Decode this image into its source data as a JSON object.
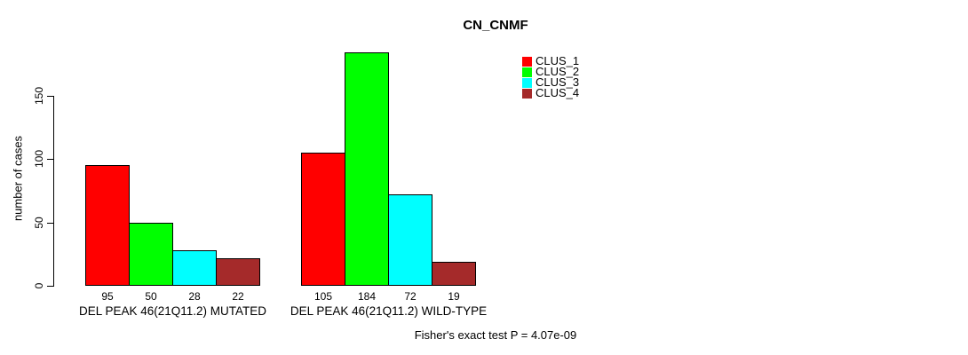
{
  "title": "CN_CNMF",
  "ylabel": "number of cases",
  "annotation": "Fisher's exact test P = 4.07e-09",
  "chart_data": {
    "type": "bar",
    "title": "CN_CNMF",
    "xlabel": "",
    "ylabel": "number of cases",
    "ylim": [
      0,
      184
    ],
    "yticks": [
      0,
      50,
      100,
      150
    ],
    "grid": false,
    "legend_position": "top-right",
    "categories": [
      "DEL PEAK 46(21Q11.2) MUTATED",
      "DEL PEAK 46(21Q11.2) WILD-TYPE"
    ],
    "series": [
      {
        "name": "CLUS_1",
        "color": "#FF0000",
        "values": [
          95,
          105
        ]
      },
      {
        "name": "CLUS_2",
        "color": "#00FF00",
        "values": [
          50,
          184
        ]
      },
      {
        "name": "CLUS_3",
        "color": "#00FFFF",
        "values": [
          28,
          72
        ]
      },
      {
        "name": "CLUS_4",
        "color": "#A52A2A",
        "values": [
          22,
          19
        ]
      }
    ],
    "bar_value_labels": [
      [
        "95",
        "50",
        "28",
        "22"
      ],
      [
        "105",
        "184",
        "72",
        "19"
      ]
    ],
    "annotation": "Fisher's exact test P = 4.07e-09"
  },
  "legend": {
    "entries": [
      {
        "label": "CLUS_1",
        "color": "#FF0000"
      },
      {
        "label": "CLUS_2",
        "color": "#00FF00"
      },
      {
        "label": "CLUS_3",
        "color": "#00FFFF"
      },
      {
        "label": "CLUS_4",
        "color": "#A52A2A"
      }
    ]
  }
}
